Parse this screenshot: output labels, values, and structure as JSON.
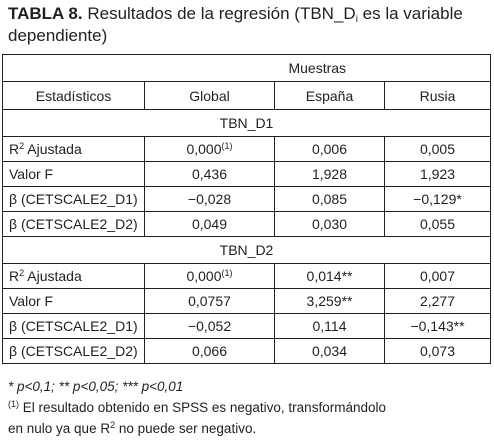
{
  "title": {
    "prefix": "TABLA 8.",
    "text_before_sub": " Resultados de la regresión (TBN_D",
    "sub": "i",
    "text_after_sub": " es la variable",
    "line2": "dependiente)"
  },
  "table": {
    "group_header": "Muestras",
    "col_headers": [
      "Estadísticos",
      "Global",
      "España",
      "Rusia"
    ],
    "sections": [
      {
        "name": "TBN_D1",
        "rows": [
          {
            "label_main": "R",
            "label_sup": "2",
            "label_rest": " Ajustada",
            "global": "0,000",
            "global_sup": "(1)",
            "espana": "0,006",
            "rusia": "0,005"
          },
          {
            "label_main": "Valor F",
            "label_sup": "",
            "label_rest": "",
            "global": "0,436",
            "global_sup": "",
            "espana": "1,928",
            "rusia": "1,923"
          },
          {
            "label_main": "β (CETSCALE2_D1)",
            "label_sup": "",
            "label_rest": "",
            "global": "−0,028",
            "global_sup": "",
            "espana": "0,085",
            "rusia": "−0,129*"
          },
          {
            "label_main": "β (CETSCALE2_D2)",
            "label_sup": "",
            "label_rest": "",
            "global": "0,049",
            "global_sup": "",
            "espana": "0,030",
            "rusia": "0,055"
          }
        ]
      },
      {
        "name": "TBN_D2",
        "rows": [
          {
            "label_main": "R",
            "label_sup": "2",
            "label_rest": " Ajustada",
            "global": "0,000",
            "global_sup": "(1)",
            "espana": "0,014**",
            "rusia": "0,007"
          },
          {
            "label_main": "Valor F",
            "label_sup": "",
            "label_rest": "",
            "global": "0,0757",
            "global_sup": "",
            "espana": "3,259**",
            "rusia": "2,277"
          },
          {
            "label_main": "β (CETSCALE2_D1)",
            "label_sup": "",
            "label_rest": "",
            "global": "−0,052",
            "global_sup": "",
            "espana": "0,114",
            "rusia": "−0,143**"
          },
          {
            "label_main": "β (CETSCALE2_D2)",
            "label_sup": "",
            "label_rest": "",
            "global": "0,066",
            "global_sup": "",
            "espana": "0,034",
            "rusia": "0,073"
          }
        ]
      }
    ]
  },
  "footnotes": {
    "significance": "* p<0,1; ** p<0,05; *** p<0,01",
    "note_mark": "(1)",
    "note_line1": " El resultado obtenido en SPSS es negativo, transformándolo",
    "note_line2_before": "en nulo ya que R",
    "note_line2_sup": "2",
    "note_line2_after": " no puede ser negativo."
  }
}
